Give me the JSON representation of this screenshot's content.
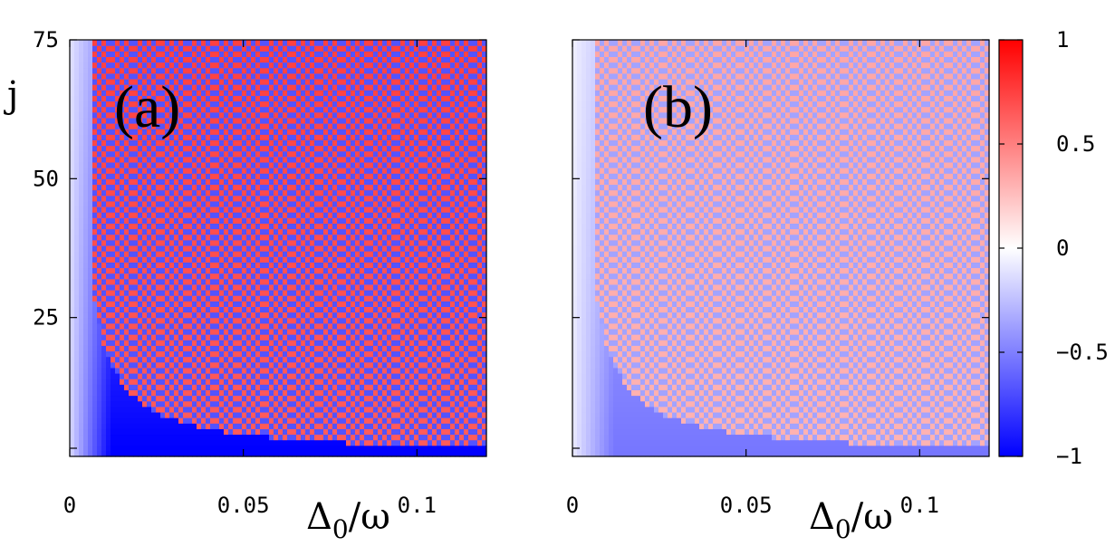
{
  "chart_data": [
    {
      "type": "heatmap",
      "panel_label": "(a)",
      "xlabel_main": "Δ",
      "xlabel_sub": "0",
      "xlabel_tail": "/ω",
      "ylabel": "j",
      "xlim": [
        0,
        0.12
      ],
      "ylim": [
        0,
        75
      ],
      "x_ticks": [
        0,
        0.05,
        0.1
      ],
      "x_tick_labels": [
        "0",
        "0.05",
        "0.1"
      ],
      "y_ticks": [
        25,
        50,
        75
      ],
      "y_tick_labels": [
        "25",
        "50",
        "75"
      ],
      "description_values": {
        "background_level": -0.75,
        "stripe_level": 0.75,
        "boundary_constant": 0.2
      }
    },
    {
      "type": "heatmap",
      "panel_label": "(b)",
      "xlabel_main": "Δ",
      "xlabel_sub": "0",
      "xlabel_tail": "/ω",
      "xlim": [
        0,
        0.12
      ],
      "ylim": [
        0,
        75
      ],
      "x_ticks": [
        0,
        0.05,
        0.1
      ],
      "x_tick_labels": [
        "0",
        "0.05",
        "0.1"
      ],
      "y_ticks": [
        25,
        50,
        75
      ],
      "description_values": {
        "background_level": -0.4,
        "stripe_level": 0.35,
        "boundary_constant": 0.2
      }
    }
  ],
  "colorbar": {
    "range": [
      -1,
      1
    ],
    "ticks": [
      1,
      0.5,
      0,
      -0.5,
      -1
    ],
    "tick_labels": [
      "1",
      "0.5",
      "0",
      "−0.5",
      "−1"
    ],
    "colors": {
      "low": "#0000ff",
      "mid": "#ffffff",
      "high": "#ff0000"
    }
  }
}
